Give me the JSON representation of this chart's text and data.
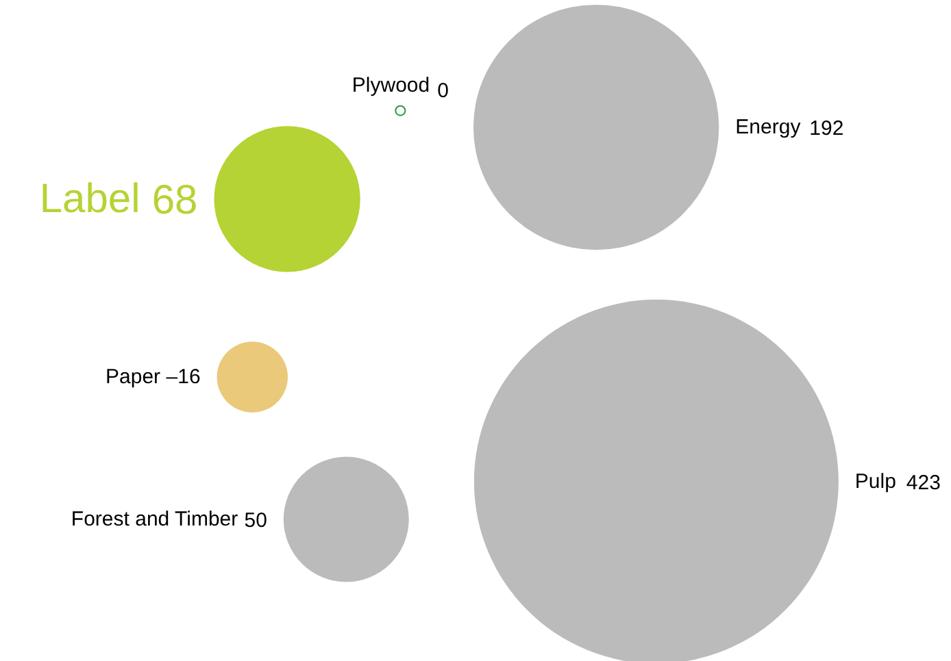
{
  "chart_data": {
    "type": "other",
    "categories": [
      "Label",
      "Plywood",
      "Energy",
      "Pulp",
      "Forest and Timber",
      "Paper"
    ],
    "values": [
      68,
      0,
      192,
      423,
      50,
      -16
    ],
    "value_labels": [
      "68",
      "0",
      "192",
      "423",
      "50",
      "–16"
    ],
    "colors": [
      "#b5d334",
      "#ffffff",
      "#bbbbbb",
      "#bbbbbb",
      "#bbbbbb",
      "#ebc97a"
    ]
  }
}
